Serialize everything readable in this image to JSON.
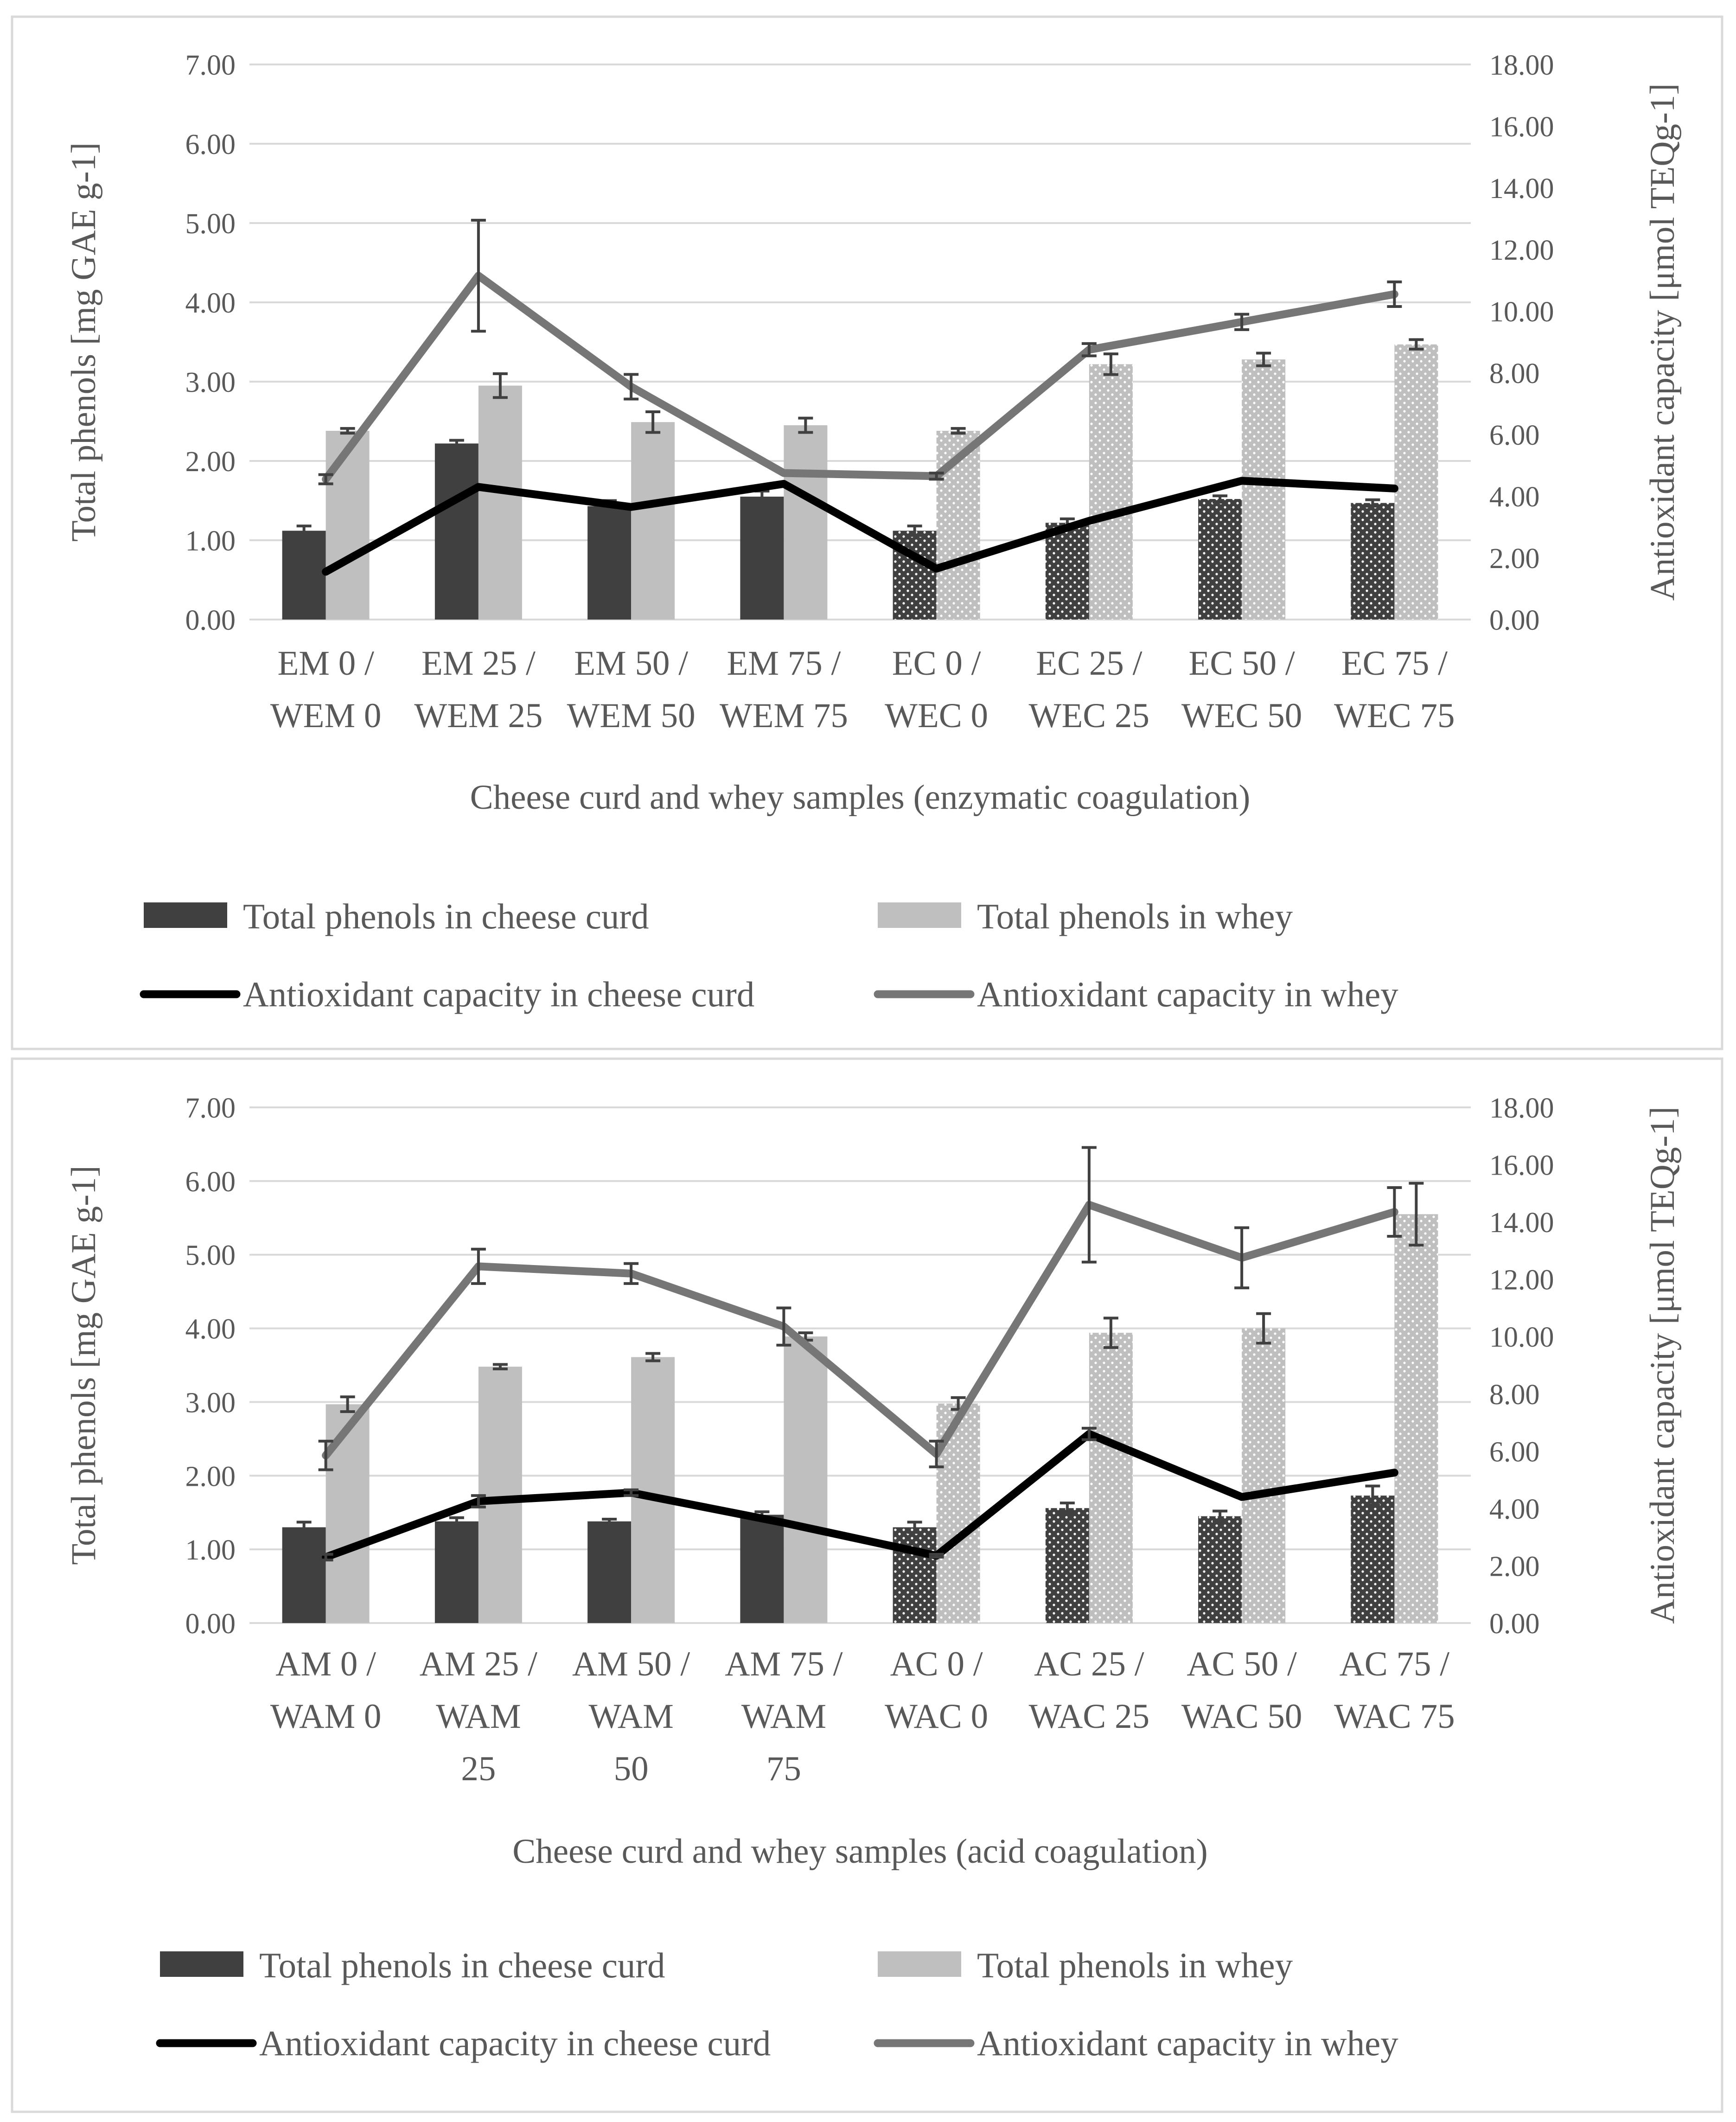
{
  "colors": {
    "curd_bar": "#404040",
    "whey_bar": "#bfbfbf",
    "curd_line": "#000000",
    "whey_line": "#767676",
    "text": "#595959",
    "grid": "#d9d9d9",
    "frame": "#d9d9d9"
  },
  "chart_data": [
    {
      "type": "bar",
      "title": "",
      "xlabel": "Cheese curd and whey samples (enzymatic coagulation)",
      "ylabel": "Total phenols [mg GAE g-1]",
      "y2label": "Antioxidant capacity [μmol TEQg-1]",
      "ylim": [
        0,
        7
      ],
      "y2lim": [
        0,
        18
      ],
      "yticks": [
        "0.00",
        "1.00",
        "2.00",
        "3.00",
        "4.00",
        "5.00",
        "6.00",
        "7.00"
      ],
      "y2ticks": [
        "0.00",
        "2.00",
        "4.00",
        "6.00",
        "8.00",
        "10.00",
        "12.00",
        "14.00",
        "16.00",
        "18.00"
      ],
      "categories": [
        [
          "EM 0 /",
          "WEM 0"
        ],
        [
          "EM 25 /",
          "WEM 25"
        ],
        [
          "EM 50 /",
          "WEM 50"
        ],
        [
          "EM 75 /",
          "WEM 75"
        ],
        [
          "EC 0 /",
          "WEC 0"
        ],
        [
          "EC 25 /",
          "WEC 25"
        ],
        [
          "EC 50 /",
          "WEC 50"
        ],
        [
          "EC 75 /",
          "WEC 75"
        ]
      ],
      "dotted_from_index": 4,
      "series": [
        {
          "name": "Total phenols in cheese curd",
          "kind": "bar",
          "axis": "left",
          "values": [
            1.12,
            2.22,
            1.43,
            1.55,
            1.12,
            1.22,
            1.52,
            1.47
          ],
          "errors": [
            0.06,
            0.04,
            0.07,
            0.07,
            0.06,
            0.05,
            0.04,
            0.04
          ]
        },
        {
          "name": "Total phenols in whey",
          "kind": "bar",
          "axis": "left",
          "values": [
            2.38,
            2.95,
            2.49,
            2.45,
            2.38,
            3.22,
            3.28,
            3.47
          ],
          "errors": [
            0.03,
            0.15,
            0.13,
            0.09,
            0.03,
            0.13,
            0.08,
            0.06
          ]
        },
        {
          "name": "Antioxidant capacity in cheese curd",
          "kind": "line",
          "axis": "right",
          "values": [
            1.55,
            4.3,
            3.65,
            4.4,
            1.65,
            3.2,
            4.5,
            4.25
          ],
          "errors": [
            0,
            0,
            0,
            0,
            0,
            0,
            0,
            0
          ]
        },
        {
          "name": "Antioxidant capacity in whey",
          "kind": "line",
          "axis": "right",
          "values": [
            4.55,
            11.15,
            7.55,
            4.75,
            4.65,
            8.75,
            9.65,
            10.55
          ],
          "errors": [
            0.15,
            1.8,
            0.4,
            0.0,
            0.1,
            0.2,
            0.25,
            0.4
          ]
        }
      ]
    },
    {
      "type": "bar",
      "title": "",
      "xlabel": "Cheese curd and whey samples (acid coagulation)",
      "ylabel": "Total phenols [mg GAE g-1]",
      "y2label": "Antioxidant capacity [μmol TEQg-1]",
      "ylim": [
        0,
        7
      ],
      "y2lim": [
        0,
        18
      ],
      "yticks": [
        "0.00",
        "1.00",
        "2.00",
        "3.00",
        "4.00",
        "5.00",
        "6.00",
        "7.00"
      ],
      "y2ticks": [
        "0.00",
        "2.00",
        "4.00",
        "6.00",
        "8.00",
        "10.00",
        "12.00",
        "14.00",
        "16.00",
        "18.00"
      ],
      "categories": [
        [
          "AM 0 /",
          "WAM 0"
        ],
        [
          "AM 25 /",
          "WAM",
          "25"
        ],
        [
          "AM 50 /",
          "WAM",
          "50"
        ],
        [
          "AM 75 /",
          "WAM",
          "75"
        ],
        [
          "AC 0 /",
          "WAC 0"
        ],
        [
          "AC 25 /",
          "WAC 25"
        ],
        [
          "AC 50 /",
          "WAC 50"
        ],
        [
          "AC 75 /",
          "WAC 75"
        ]
      ],
      "dotted_from_index": 4,
      "series": [
        {
          "name": "Total phenols in cheese curd",
          "kind": "bar",
          "axis": "left",
          "values": [
            1.3,
            1.38,
            1.38,
            1.47,
            1.3,
            1.56,
            1.45,
            1.73
          ],
          "errors": [
            0.07,
            0.05,
            0.03,
            0.04,
            0.07,
            0.07,
            0.07,
            0.13
          ]
        },
        {
          "name": "Total phenols in whey",
          "kind": "bar",
          "axis": "left",
          "values": [
            2.97,
            3.48,
            3.61,
            3.89,
            2.98,
            3.94,
            4.0,
            5.55
          ],
          "errors": [
            0.1,
            0.03,
            0.05,
            0.05,
            0.08,
            0.2,
            0.2,
            0.42
          ]
        },
        {
          "name": "Antioxidant capacity in cheese curd",
          "kind": "line",
          "axis": "right",
          "values": [
            2.3,
            4.25,
            4.55,
            3.5,
            2.35,
            6.6,
            4.4,
            5.25
          ],
          "errors": [
            0.1,
            0.2,
            0.1,
            0.0,
            0.05,
            0.2,
            0.0,
            0.0
          ]
        },
        {
          "name": "Antioxidant capacity in whey",
          "kind": "line",
          "axis": "right",
          "values": [
            5.85,
            12.45,
            12.2,
            10.35,
            5.9,
            14.6,
            12.75,
            14.35
          ],
          "errors": [
            0.5,
            0.6,
            0.35,
            0.65,
            0.45,
            2.0,
            1.05,
            0.85
          ]
        }
      ]
    }
  ]
}
